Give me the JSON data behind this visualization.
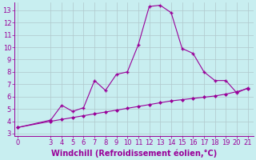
{
  "xlabel": "Windchill (Refroidissement éolien,°C)",
  "x_data": [
    0,
    3,
    4,
    5,
    6,
    7,
    8,
    9,
    10,
    11,
    12,
    13,
    14,
    15,
    16,
    17,
    18,
    19,
    20,
    21
  ],
  "y_data": [
    3.5,
    4.1,
    5.3,
    4.8,
    5.1,
    7.3,
    6.5,
    7.8,
    8.0,
    10.2,
    13.3,
    13.4,
    12.8,
    9.9,
    9.5,
    8.0,
    7.3,
    7.3,
    6.3,
    6.7
  ],
  "y_trend": [
    3.5,
    4.0,
    4.15,
    4.3,
    4.45,
    4.6,
    4.75,
    4.9,
    5.05,
    5.2,
    5.35,
    5.5,
    5.65,
    5.75,
    5.85,
    5.95,
    6.05,
    6.2,
    6.4,
    6.65
  ],
  "line_color": "#990099",
  "bg_color": "#c8eef0",
  "grid_color": "#b0c8cc",
  "ylim_min": 2.8,
  "ylim_max": 13.6,
  "yticks": [
    3,
    4,
    5,
    6,
    7,
    8,
    9,
    10,
    11,
    12,
    13
  ],
  "xticks": [
    0,
    3,
    4,
    5,
    6,
    7,
    8,
    9,
    10,
    11,
    12,
    13,
    14,
    15,
    16,
    17,
    18,
    19,
    20,
    21
  ],
  "tick_fontsize": 6,
  "xlabel_fontsize": 7
}
